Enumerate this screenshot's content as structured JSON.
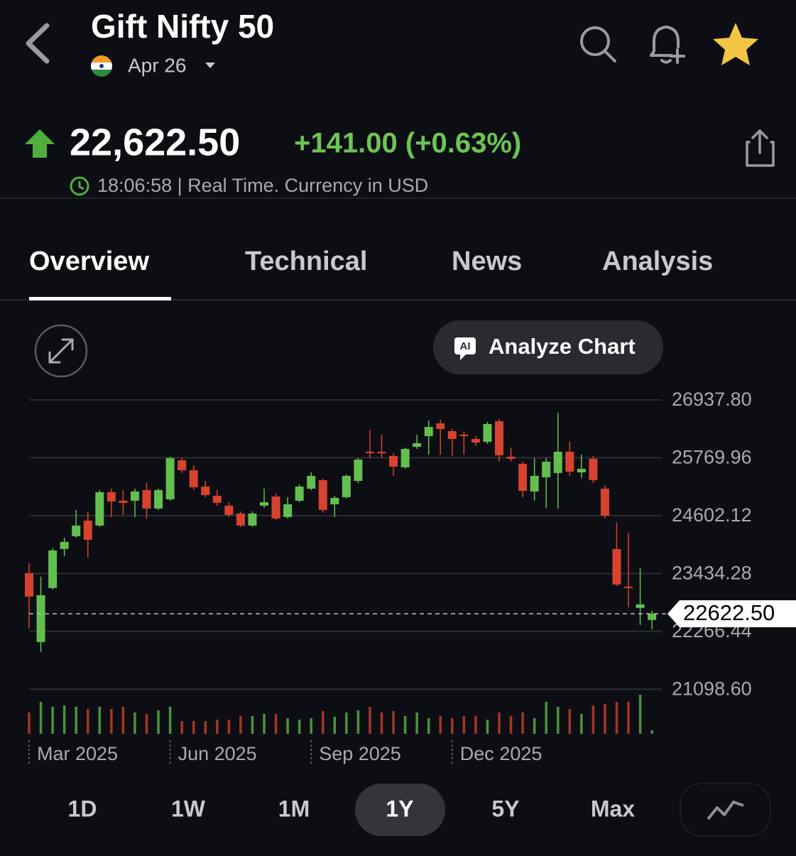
{
  "header": {
    "title": "Gift Nifty 50",
    "date": "Apr 26"
  },
  "quote": {
    "price": "22,622.50",
    "change": "+141.00 (+0.63%)",
    "time": "18:06:58 | Real Time. Currency in USD"
  },
  "tabs": [
    "Overview",
    "Technical",
    "News",
    "Analysis"
  ],
  "analyze": {
    "badge": "AI",
    "label": "Analyze Chart"
  },
  "chart_data": {
    "type": "candlestick",
    "categories": [
      "Mar 2025",
      null,
      null,
      null,
      null,
      null,
      null,
      null,
      null,
      null,
      null,
      null,
      "Jun 2025",
      null,
      null,
      null,
      null,
      null,
      null,
      null,
      null,
      null,
      null,
      null,
      "Sep 2025",
      null,
      null,
      null,
      null,
      null,
      null,
      null,
      null,
      null,
      null,
      null,
      "Dec 2025",
      null,
      null,
      null,
      null,
      null,
      null,
      null,
      null,
      null,
      null,
      null,
      null,
      null,
      null,
      null,
      null,
      null
    ],
    "open": [
      23441,
      22051,
      23141,
      23929,
      24187,
      24502,
      24402,
      25075,
      24903,
      24903,
      25118,
      24746,
      24932,
      25720,
      25519,
      25190,
      25003,
      24803,
      24645,
      24402,
      24803,
      24989,
      24574,
      24903,
      25147,
      25319,
      24831,
      24975,
      25304,
      25892,
      25892,
      25806,
      25577,
      25992,
      26207,
      26465,
      26307,
      26236,
      26150,
      26093,
      26508,
      25792,
      25648,
      25089,
      25376,
      25462,
      25892,
      25476,
      25749,
      25147,
      23929,
      23169,
      22739,
      22496
    ],
    "high": [
      23642,
      23370,
      23943,
      24158,
      24717,
      24688,
      25118,
      25147,
      25118,
      25147,
      25261,
      25147,
      25792,
      25763,
      25620,
      25304,
      25118,
      24874,
      24688,
      24688,
      25147,
      25046,
      24975,
      25233,
      25476,
      25347,
      25003,
      25433,
      25763,
      26336,
      26236,
      25863,
      25978,
      26236,
      26522,
      26537,
      26350,
      26293,
      26207,
      26494,
      26551,
      25978,
      25691,
      25763,
      25763,
      26680,
      26093,
      25835,
      25806,
      25218,
      24459,
      24258,
      23542,
      22680
    ],
    "low": [
      22324,
      21851,
      23112,
      23785,
      24158,
      23757,
      24373,
      24574,
      24617,
      24574,
      24545,
      24717,
      24903,
      25462,
      25118,
      24975,
      24803,
      24574,
      24373,
      24373,
      24760,
      24516,
      24545,
      24874,
      25118,
      24660,
      24574,
      24946,
      25261,
      25763,
      25763,
      25405,
      25548,
      25949,
      25835,
      25835,
      25806,
      25835,
      26007,
      26050,
      25691,
      25691,
      24975,
      24903,
      24760,
      24746,
      25405,
      25362,
      25261,
      24545,
      23184,
      22754,
      22395,
      22309
    ],
    "close": [
      22969,
      22997,
      23900,
      24072,
      24402,
      24115,
      25075,
      24889,
      24860,
      25089,
      24746,
      25118,
      25763,
      25519,
      25175,
      25018,
      24860,
      24617,
      24402,
      24645,
      24874,
      24545,
      24831,
      25190,
      25405,
      24717,
      24960,
      25405,
      25734,
      25863,
      25863,
      25591,
      25949,
      26064,
      26393,
      26350,
      26150,
      26207,
      26078,
      26451,
      25820,
      25749,
      25104,
      25405,
      25691,
      25892,
      25491,
      25548,
      25319,
      24602,
      23212,
      23141,
      22811,
      22622.5
    ],
    "volume": [
      30,
      45,
      38,
      40,
      38,
      35,
      38,
      35,
      38,
      30,
      28,
      33,
      38,
      18,
      18,
      18,
      20,
      20,
      25,
      25,
      28,
      28,
      22,
      20,
      22,
      32,
      24,
      30,
      33,
      38,
      30,
      32,
      25,
      30,
      22,
      25,
      22,
      25,
      25,
      20,
      30,
      25,
      30,
      22,
      45,
      38,
      35,
      28,
      40,
      42,
      45,
      45,
      55,
      5
    ],
    "up_color": "#62bf4f",
    "down_color": "#d7432f",
    "ylim": [
      21030,
      27200
    ],
    "yticks": [
      {
        "value": 26937.8,
        "label": "26937.80"
      },
      25769.96,
      24602.12,
      23434.28,
      22266.44,
      {
        "value": 21098.6,
        "label": "21098.60"
      }
    ],
    "grid": true,
    "last_price": {
      "value": 22622.5,
      "label": "22622.50"
    }
  },
  "ranges": [
    "1D",
    "1W",
    "1M",
    "1Y",
    "5Y",
    "Max"
  ],
  "active_range": 3
}
